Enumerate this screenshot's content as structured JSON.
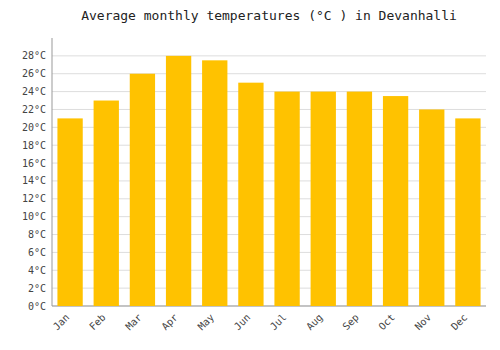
{
  "chart_data": {
    "type": "bar",
    "title": "Average monthly temperatures (°C ) in Devanhalli",
    "categories": [
      "Jan",
      "Feb",
      "Mar",
      "Apr",
      "May",
      "Jun",
      "Jul",
      "Aug",
      "Sep",
      "Oct",
      "Nov",
      "Dec"
    ],
    "values": [
      21,
      23,
      26,
      28,
      27.5,
      25,
      24,
      24,
      24,
      23.5,
      22,
      21
    ],
    "color": "#FFC200",
    "ylim": [
      0,
      30
    ],
    "yticks": [
      {
        "value": 0,
        "label": "0°C"
      },
      {
        "value": 2,
        "label": "2°C"
      },
      {
        "value": 4,
        "label": "4°C"
      },
      {
        "value": 6,
        "label": "6°C"
      },
      {
        "value": 8,
        "label": "8°C"
      },
      {
        "value": 10,
        "label": "10°C"
      },
      {
        "value": 12,
        "label": "12°C"
      },
      {
        "value": 14,
        "label": "14°C"
      },
      {
        "value": 16,
        "label": "16°C"
      },
      {
        "value": 18,
        "label": "18°C"
      },
      {
        "value": 20,
        "label": "20°C"
      },
      {
        "value": 22,
        "label": "22°C"
      },
      {
        "value": 24,
        "label": "24°C"
      },
      {
        "value": 26,
        "label": "26°C"
      },
      {
        "value": 28,
        "label": "28°C"
      }
    ],
    "grid": true
  }
}
